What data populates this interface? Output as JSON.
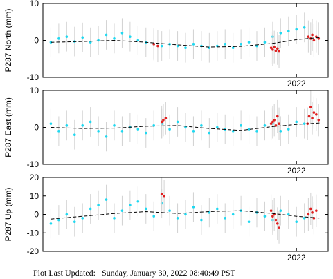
{
  "footer": {
    "label": "Plot Last Updated:",
    "timestamp": "Sunday, January 30, 2022 08:40:49 PST"
  },
  "colors": {
    "errorbar": "#d2d2d2",
    "point_normal": "#20d8f0",
    "point_recent": "#e02020",
    "trend": "#000000",
    "frame": "#000000"
  },
  "chart_data": [
    {
      "type": "scatter",
      "station": "P287",
      "component": "North",
      "ylabel": "P287 North (mm)",
      "ylim": [
        -10,
        10
      ],
      "yticks": [
        -10,
        0,
        10
      ],
      "xlim": [
        2018.8,
        2022.4
      ],
      "xticks": [
        {
          "value": 2022.0,
          "label": "2022"
        }
      ],
      "series": [
        {
          "name": "",
          "style": "daily-solution",
          "x": [
            2018.9,
            2019.0,
            2019.1,
            2019.2,
            2019.3,
            2019.4,
            2019.5,
            2019.6,
            2019.7,
            2019.8,
            2019.9,
            2020.0,
            2020.1,
            2020.2,
            2020.3,
            2020.4,
            2020.5,
            2020.6,
            2020.7,
            2020.8,
            2020.9,
            2021.0,
            2021.1,
            2021.2,
            2021.3,
            2021.4,
            2021.5,
            2021.6,
            2021.7,
            2021.8,
            2021.9,
            2022.0,
            2022.1
          ],
          "values": [
            -0.5,
            0.5,
            1.0,
            -0.3,
            0.8,
            -0.5,
            0.0,
            1.5,
            0.5,
            2.0,
            1.0,
            0.0,
            -0.5,
            -1.0,
            -1.5,
            -1.0,
            -1.5,
            -2.0,
            -1.0,
            -1.5,
            -2.0,
            -1.5,
            -1.0,
            -2.0,
            -1.0,
            -0.5,
            -1.5,
            -0.5,
            1.0,
            2.0,
            2.5,
            3.0,
            3.5
          ]
        },
        {
          "name": "",
          "style": "recent-solution",
          "x": [
            2020.2,
            2020.25,
            2021.68,
            2021.7,
            2021.72,
            2021.74,
            2021.76,
            2021.78,
            2022.15,
            2022.18,
            2022.2,
            2022.22,
            2022.25,
            2022.28
          ],
          "values": [
            -1.0,
            -1.5,
            -2.0,
            -2.5,
            -1.8,
            -2.8,
            -2.2,
            -3.0,
            1.0,
            0.5,
            1.5,
            0.0,
            1.0,
            0.5
          ]
        },
        {
          "name": "",
          "style": "trend",
          "x": [
            2018.9,
            2019.3,
            2019.7,
            2020.1,
            2020.5,
            2020.9,
            2021.3,
            2021.7,
            2022.0,
            2022.3
          ],
          "values": [
            -0.5,
            -0.3,
            0.0,
            -0.5,
            -1.2,
            -1.8,
            -1.6,
            -0.8,
            0.2,
            0.8
          ]
        }
      ]
    },
    {
      "type": "scatter",
      "station": "P287",
      "component": "East",
      "ylabel": "P287 East (mm)",
      "ylim": [
        -10,
        10
      ],
      "yticks": [
        -10,
        0,
        10
      ],
      "xlim": [
        2018.8,
        2022.4
      ],
      "xticks": [
        {
          "value": 2022.0,
          "label": "2022"
        }
      ],
      "series": [
        {
          "name": "",
          "style": "daily-solution",
          "x": [
            2018.9,
            2019.0,
            2019.1,
            2019.2,
            2019.3,
            2019.4,
            2019.5,
            2019.6,
            2019.7,
            2019.8,
            2019.9,
            2020.0,
            2020.1,
            2020.2,
            2020.3,
            2020.4,
            2020.5,
            2020.6,
            2020.7,
            2020.8,
            2020.9,
            2021.0,
            2021.1,
            2021.2,
            2021.3,
            2021.4,
            2021.5,
            2021.6,
            2021.7,
            2021.8,
            2021.9,
            2022.0,
            2022.1
          ],
          "values": [
            1.0,
            -1.0,
            0.5,
            -2.0,
            0.5,
            1.5,
            -1.0,
            -2.5,
            0.5,
            -1.0,
            0.0,
            -0.5,
            -1.5,
            0.5,
            1.0,
            -0.5,
            1.5,
            0.0,
            -1.0,
            0.5,
            -1.5,
            0.0,
            -0.5,
            -1.0,
            0.5,
            -0.5,
            -1.0,
            0.5,
            1.0,
            -1.0,
            -0.5,
            1.5,
            1.0
          ]
        },
        {
          "name": "",
          "style": "recent-solution",
          "x": [
            2020.3,
            2020.32,
            2020.35,
            2021.68,
            2021.7,
            2021.72,
            2021.74,
            2021.76,
            2021.78,
            2022.14,
            2022.16,
            2022.18,
            2022.2,
            2022.22,
            2022.25,
            2022.28
          ],
          "values": [
            1.5,
            2.0,
            2.5,
            1.0,
            1.5,
            2.0,
            0.5,
            3.0,
            1.0,
            1.0,
            3.0,
            5.5,
            2.5,
            4.0,
            3.5,
            2.0
          ]
        },
        {
          "name": "",
          "style": "trend",
          "x": [
            2018.9,
            2019.3,
            2019.7,
            2020.1,
            2020.5,
            2020.9,
            2021.3,
            2021.7,
            2022.0,
            2022.3
          ],
          "values": [
            0.0,
            -0.3,
            -0.2,
            0.3,
            0.5,
            -0.3,
            -0.8,
            0.2,
            0.8,
            1.2
          ]
        }
      ]
    },
    {
      "type": "scatter",
      "station": "P287",
      "component": "Up",
      "ylabel": "P287 Up (mm)",
      "ylim": [
        -20,
        20
      ],
      "yticks": [
        -20,
        -10,
        0,
        10,
        20
      ],
      "xlim": [
        2018.8,
        2022.4
      ],
      "xticks": [
        {
          "value": 2022.0,
          "label": "2022"
        }
      ],
      "series": [
        {
          "name": "",
          "style": "daily-solution",
          "x": [
            2018.9,
            2019.0,
            2019.1,
            2019.2,
            2019.3,
            2019.4,
            2019.5,
            2019.6,
            2019.7,
            2019.8,
            2019.9,
            2020.0,
            2020.1,
            2020.2,
            2020.3,
            2020.4,
            2020.5,
            2020.6,
            2020.7,
            2020.8,
            2020.9,
            2021.0,
            2021.1,
            2021.2,
            2021.3,
            2021.4,
            2021.5,
            2021.6,
            2021.7,
            2021.8,
            2021.9,
            2022.0,
            2022.1
          ],
          "values": [
            -5.0,
            -3.0,
            0.0,
            -4.0,
            -2.0,
            3.0,
            5.0,
            8.0,
            -2.0,
            2.0,
            5.0,
            7.0,
            3.0,
            -1.0,
            6.0,
            2.0,
            -2.0,
            0.0,
            4.0,
            -3.0,
            1.0,
            3.0,
            -2.0,
            0.0,
            2.0,
            -4.0,
            1.0,
            -1.0,
            -3.0,
            2.0,
            0.0,
            -4.0,
            -2.0
          ]
        },
        {
          "name": "",
          "style": "recent-solution",
          "x": [
            2020.3,
            2020.33,
            2021.68,
            2021.7,
            2021.72,
            2021.74,
            2021.76,
            2021.78,
            2022.15,
            2022.18,
            2022.2,
            2022.22,
            2022.25
          ],
          "values": [
            11.0,
            10.0,
            2.0,
            -1.0,
            0.0,
            -3.0,
            -5.0,
            -7.0,
            0.0,
            3.0,
            1.0,
            -2.0,
            2.0
          ]
        },
        {
          "name": "",
          "style": "trend",
          "x": [
            2018.9,
            2019.3,
            2019.7,
            2020.1,
            2020.5,
            2020.9,
            2021.3,
            2021.7,
            2022.0,
            2022.3
          ],
          "values": [
            -2.5,
            -1.0,
            0.5,
            1.5,
            0.5,
            1.5,
            2.0,
            0.5,
            -1.0,
            -2.0
          ]
        }
      ]
    }
  ]
}
